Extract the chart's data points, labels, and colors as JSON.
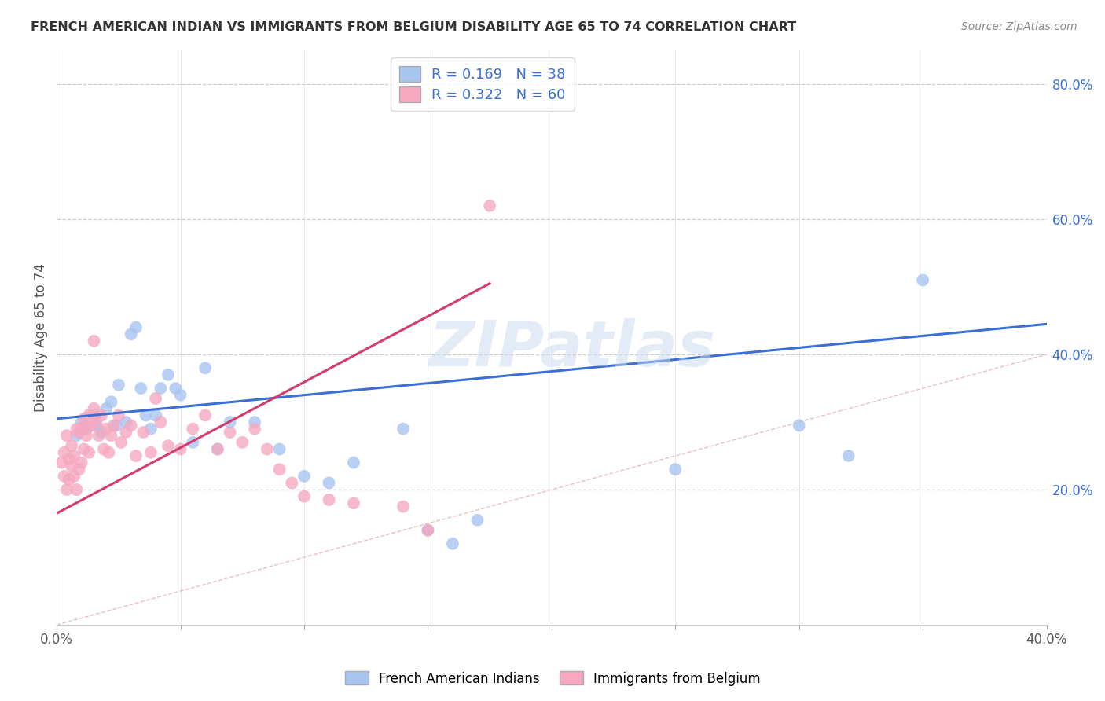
{
  "title": "FRENCH AMERICAN INDIAN VS IMMIGRANTS FROM BELGIUM DISABILITY AGE 65 TO 74 CORRELATION CHART",
  "source": "Source: ZipAtlas.com",
  "ylabel": "Disability Age 65 to 74",
  "xlim": [
    0.0,
    0.4
  ],
  "ylim": [
    0.0,
    0.85
  ],
  "x_ticks": [
    0.0,
    0.05,
    0.1,
    0.15,
    0.2,
    0.25,
    0.3,
    0.35,
    0.4
  ],
  "y_ticks_right": [
    0.0,
    0.2,
    0.4,
    0.6,
    0.8
  ],
  "y_tick_labels_right": [
    "",
    "20.0%",
    "40.0%",
    "60.0%",
    "80.0%"
  ],
  "R_blue": 0.169,
  "N_blue": 38,
  "R_pink": 0.322,
  "N_pink": 60,
  "blue_color": "#a8c4f0",
  "pink_color": "#f5a8c0",
  "blue_line_color": "#3b6fd4",
  "pink_line_color": "#d43b6f",
  "diagonal_color": "#e0b0b0",
  "legend_label_blue": "French American Indians",
  "legend_label_pink": "Immigrants from Belgium",
  "watermark": "ZIPatlas",
  "blue_scatter_x": [
    0.008,
    0.01,
    0.012,
    0.015,
    0.016,
    0.018,
    0.02,
    0.022,
    0.024,
    0.025,
    0.028,
    0.03,
    0.032,
    0.034,
    0.036,
    0.038,
    0.04,
    0.042,
    0.045,
    0.048,
    0.05,
    0.055,
    0.06,
    0.065,
    0.07,
    0.08,
    0.09,
    0.1,
    0.11,
    0.12,
    0.14,
    0.15,
    0.16,
    0.17,
    0.25,
    0.3,
    0.32,
    0.35
  ],
  "blue_scatter_y": [
    0.28,
    0.3,
    0.29,
    0.31,
    0.295,
    0.285,
    0.32,
    0.33,
    0.295,
    0.355,
    0.3,
    0.43,
    0.44,
    0.35,
    0.31,
    0.29,
    0.31,
    0.35,
    0.37,
    0.35,
    0.34,
    0.27,
    0.38,
    0.26,
    0.3,
    0.3,
    0.26,
    0.22,
    0.21,
    0.24,
    0.29,
    0.14,
    0.12,
    0.155,
    0.23,
    0.295,
    0.25,
    0.51
  ],
  "pink_scatter_x": [
    0.002,
    0.003,
    0.003,
    0.004,
    0.004,
    0.005,
    0.005,
    0.006,
    0.006,
    0.007,
    0.007,
    0.008,
    0.008,
    0.009,
    0.009,
    0.01,
    0.01,
    0.011,
    0.011,
    0.012,
    0.012,
    0.013,
    0.013,
    0.014,
    0.015,
    0.015,
    0.016,
    0.017,
    0.018,
    0.019,
    0.02,
    0.021,
    0.022,
    0.023,
    0.025,
    0.026,
    0.028,
    0.03,
    0.032,
    0.035,
    0.038,
    0.04,
    0.042,
    0.045,
    0.05,
    0.055,
    0.06,
    0.065,
    0.07,
    0.075,
    0.08,
    0.085,
    0.09,
    0.095,
    0.1,
    0.11,
    0.12,
    0.14,
    0.15,
    0.175
  ],
  "pink_scatter_y": [
    0.24,
    0.22,
    0.255,
    0.2,
    0.28,
    0.245,
    0.215,
    0.235,
    0.265,
    0.22,
    0.25,
    0.2,
    0.29,
    0.285,
    0.23,
    0.24,
    0.29,
    0.305,
    0.26,
    0.28,
    0.295,
    0.255,
    0.31,
    0.295,
    0.32,
    0.42,
    0.3,
    0.28,
    0.31,
    0.26,
    0.29,
    0.255,
    0.28,
    0.295,
    0.31,
    0.27,
    0.285,
    0.295,
    0.25,
    0.285,
    0.255,
    0.335,
    0.3,
    0.265,
    0.26,
    0.29,
    0.31,
    0.26,
    0.285,
    0.27,
    0.29,
    0.26,
    0.23,
    0.21,
    0.19,
    0.185,
    0.18,
    0.175,
    0.14,
    0.62
  ],
  "blue_regr": [
    0.0,
    0.4,
    0.305,
    0.445
  ],
  "pink_regr": [
    0.0,
    0.175,
    0.165,
    0.505
  ]
}
